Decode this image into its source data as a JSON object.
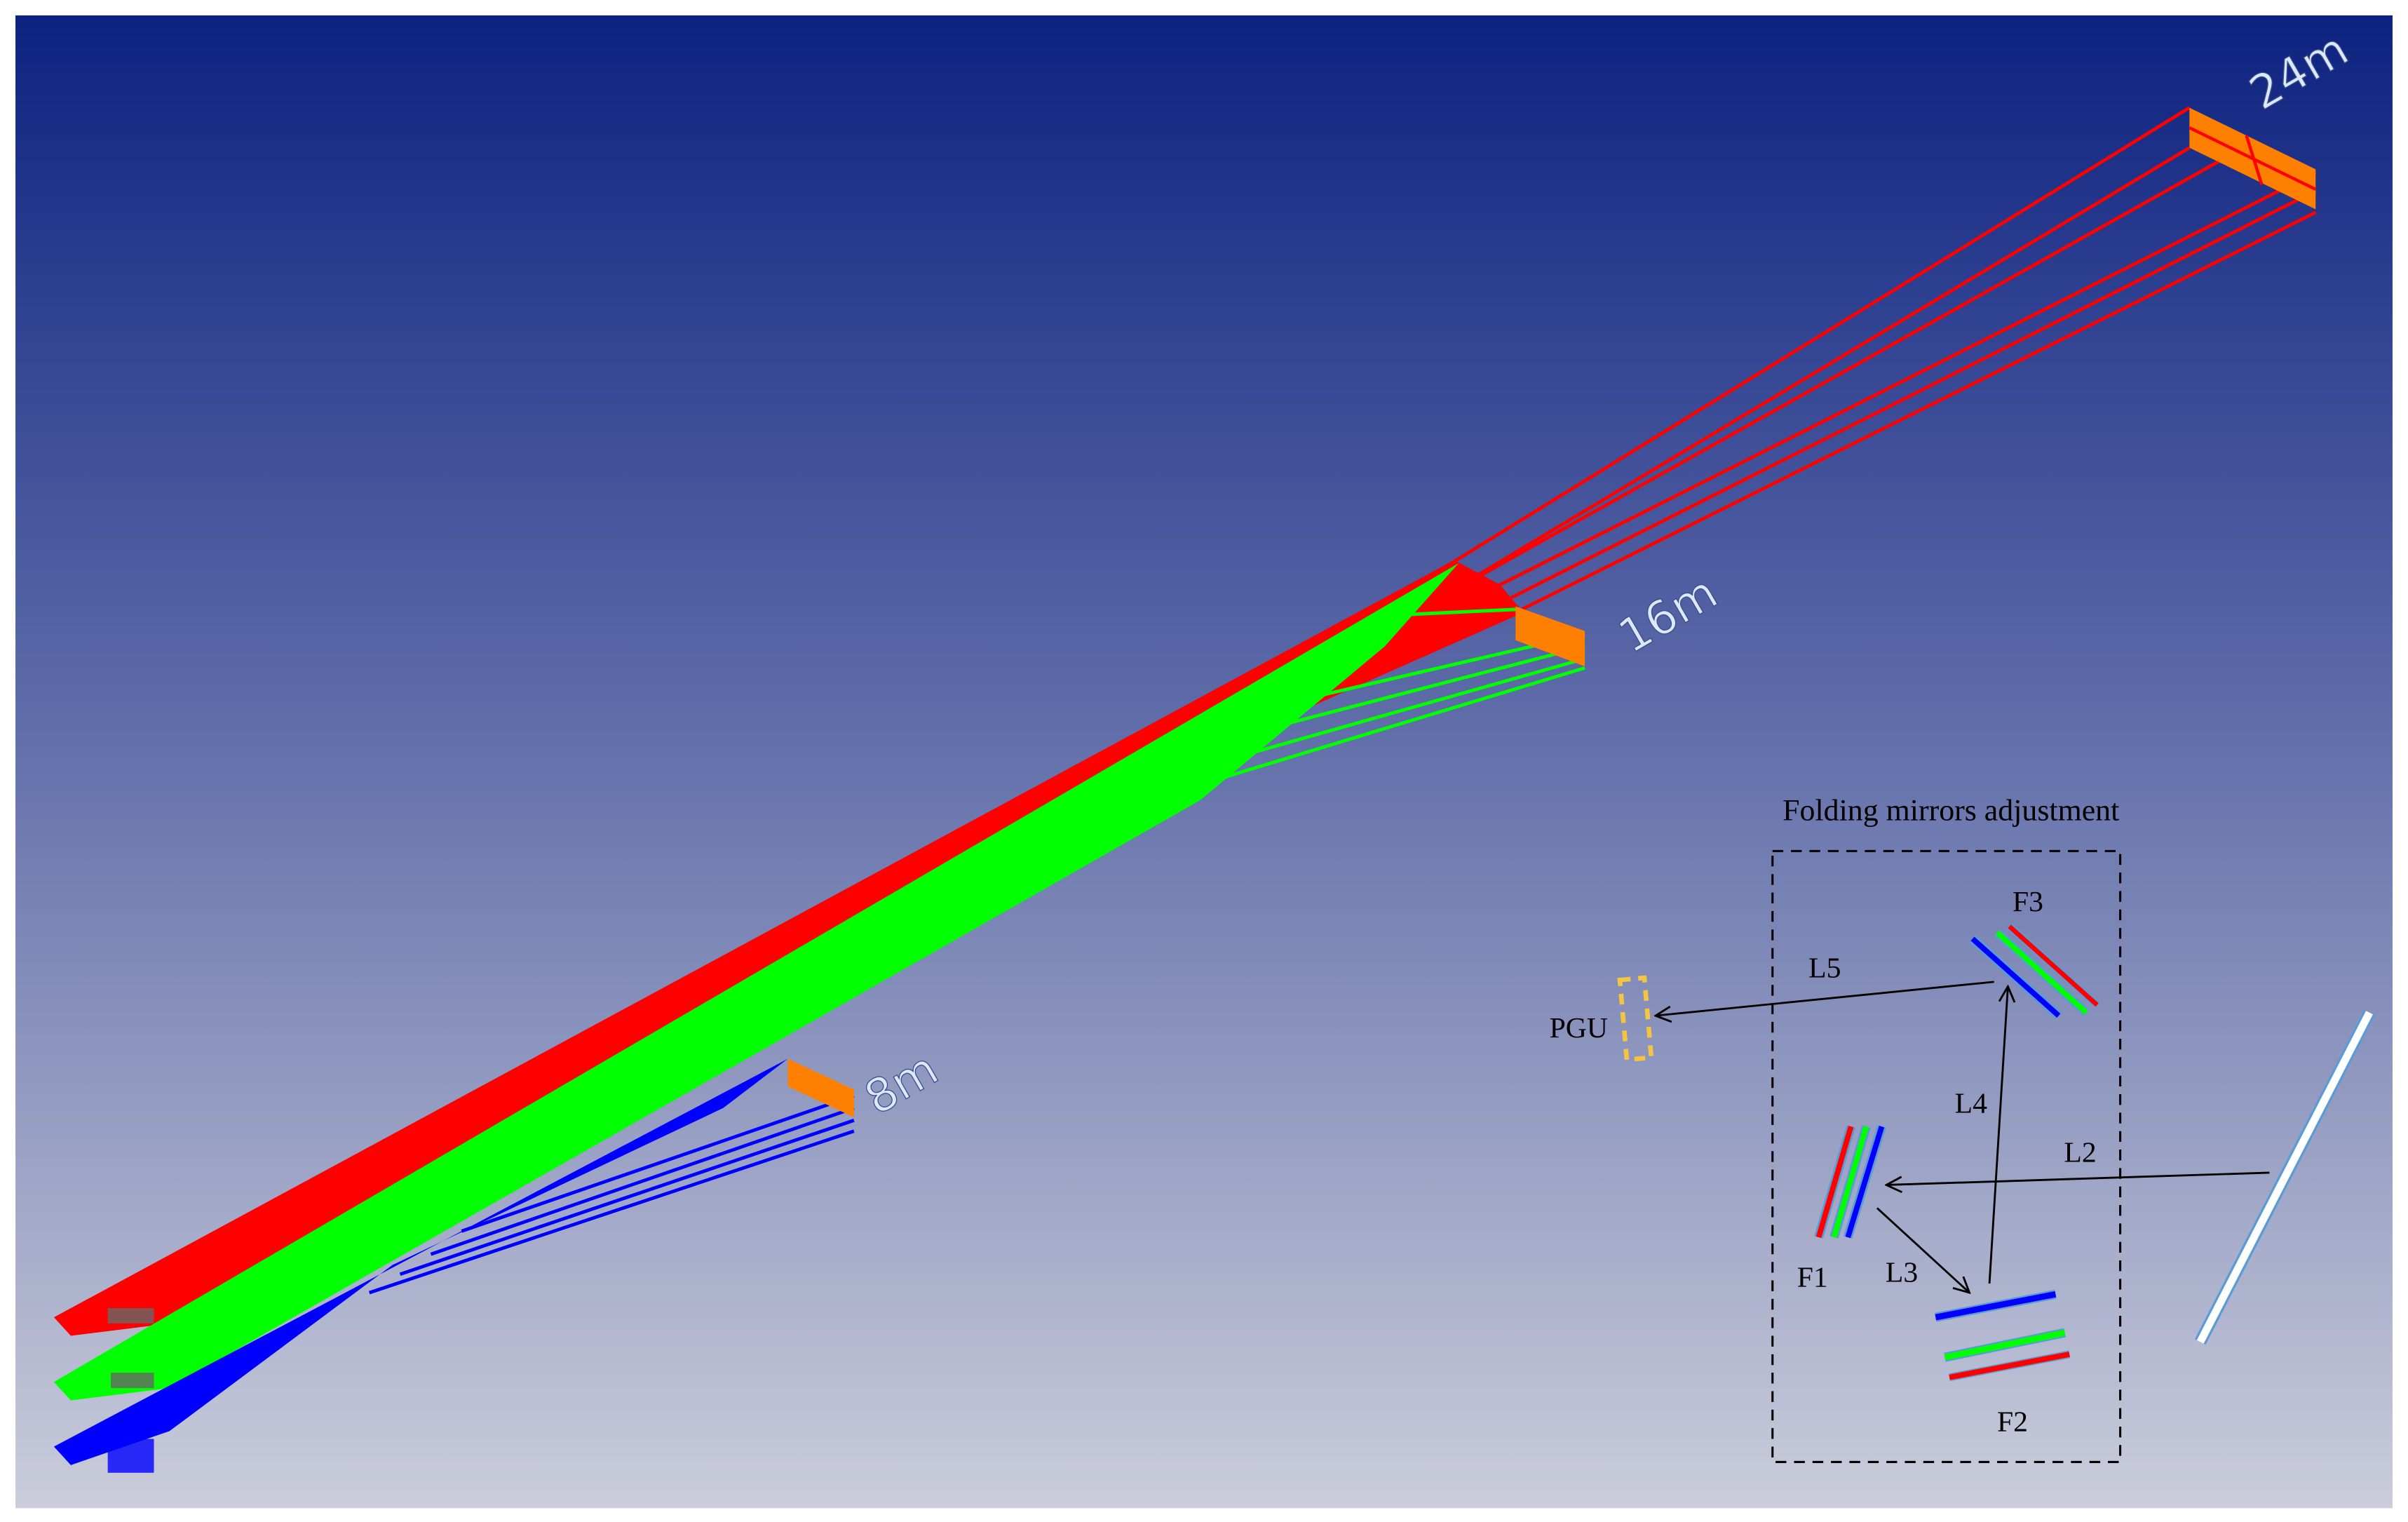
{
  "distances": {
    "far": "24m",
    "mid": "16m",
    "near": "8m"
  },
  "inset": {
    "title": "Folding mirrors adjustment",
    "mirrors": {
      "f1": "F1",
      "f2": "F2",
      "f3": "F3"
    },
    "paths": {
      "l2": "L2",
      "l3": "L3",
      "l4": "L4",
      "l5": "L5"
    },
    "pgu": "PGU"
  },
  "colors": {
    "background_top": "#0d2280",
    "background_bottom": "#c9ccdb",
    "red": "#ff0000",
    "green": "#00ff00",
    "blue": "#0000ff",
    "image_plane": "#ff8000",
    "pgu": "#f5c542"
  }
}
